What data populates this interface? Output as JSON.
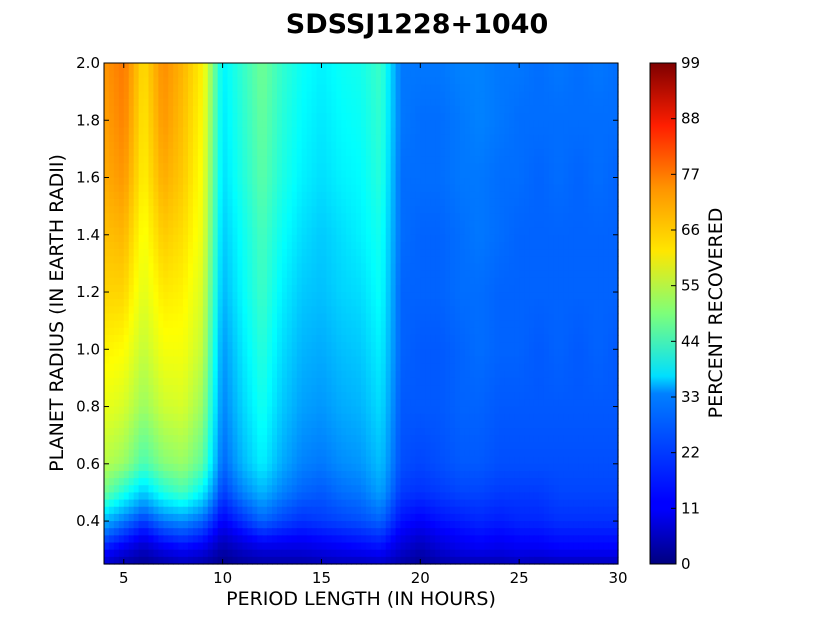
{
  "chart_data": {
    "type": "heatmap",
    "title": "SDSSJ1228+1040",
    "xlabel": "PERIOD LENGTH (IN HOURS)",
    "ylabel": "PLANET RADIUS (IN EARTH RADII)",
    "colorbar_label": "PERCENT RECOVERED",
    "colormap": "jet",
    "xlim": [
      4,
      30
    ],
    "ylim": [
      0.25,
      2.0
    ],
    "clim": [
      0,
      99
    ],
    "x_ticks": [
      5,
      10,
      15,
      20,
      25,
      30
    ],
    "x_tick_labels": [
      "5",
      "10",
      "15",
      "20",
      "25",
      "30"
    ],
    "y_ticks": [
      0.4,
      0.6,
      0.8,
      1.0,
      1.2,
      1.4,
      1.6,
      1.8,
      2.0
    ],
    "y_tick_labels": [
      "0.4",
      "0.6",
      "0.8",
      "1.0",
      "1.2",
      "1.4",
      "1.6",
      "1.8",
      "2.0"
    ],
    "colorbar_ticks": [
      0,
      11,
      22,
      33,
      44,
      55,
      66,
      77,
      88,
      99
    ],
    "colorbar_tick_labels": [
      "0",
      "11",
      "22",
      "33",
      "44",
      "55",
      "66",
      "77",
      "88",
      "99"
    ],
    "x": [
      4,
      5,
      6,
      7,
      8,
      9,
      10,
      11,
      12,
      13,
      14,
      15,
      16,
      17,
      18,
      19,
      20,
      21,
      22,
      23,
      24,
      25,
      26,
      27,
      28,
      29,
      30
    ],
    "y": [
      0.25,
      0.3,
      0.4,
      0.5,
      0.6,
      0.8,
      1.0,
      1.2,
      1.4,
      1.6,
      1.8,
      2.0
    ],
    "z": [
      [
        8,
        4,
        2,
        4,
        6,
        4,
        1,
        3,
        4,
        4,
        4,
        5,
        6,
        6,
        7,
        4,
        2,
        4,
        5,
        5,
        5,
        6,
        5,
        6,
        6,
        6,
        6
      ],
      [
        14,
        10,
        6,
        10,
        12,
        10,
        4,
        7,
        9,
        9,
        9,
        10,
        11,
        12,
        13,
        8,
        5,
        8,
        10,
        11,
        10,
        11,
        11,
        12,
        12,
        12,
        12
      ],
      [
        30,
        24,
        18,
        24,
        26,
        22,
        12,
        17,
        22,
        19,
        17,
        18,
        19,
        20,
        22,
        14,
        12,
        14,
        15,
        16,
        15,
        16,
        16,
        17,
        17,
        17,
        17
      ],
      [
        48,
        40,
        32,
        40,
        44,
        36,
        18,
        25,
        30,
        25,
        22,
        21,
        23,
        24,
        28,
        18,
        17,
        18,
        19,
        19,
        18,
        18,
        18,
        19,
        19,
        19,
        19
      ],
      [
        55,
        52,
        44,
        50,
        52,
        46,
        22,
        30,
        36,
        29,
        25,
        24,
        26,
        27,
        31,
        20,
        19,
        20,
        21,
        21,
        20,
        20,
        20,
        20,
        20,
        20,
        20
      ],
      [
        60,
        58,
        52,
        57,
        58,
        52,
        25,
        33,
        39,
        32,
        28,
        27,
        29,
        30,
        34,
        21,
        21,
        21,
        22,
        22,
        21,
        21,
        21,
        21,
        21,
        21,
        21
      ],
      [
        63,
        62,
        56,
        61,
        61,
        56,
        27,
        35,
        41,
        34,
        30,
        29,
        31,
        32,
        36,
        22,
        21,
        21,
        22,
        23,
        22,
        22,
        21,
        22,
        21,
        22,
        21
      ],
      [
        66,
        66,
        59,
        64,
        63,
        58,
        30,
        37,
        43,
        36,
        32,
        31,
        33,
        34,
        38,
        22,
        22,
        22,
        23,
        23,
        22,
        22,
        22,
        22,
        22,
        22,
        22
      ],
      [
        68,
        69,
        61,
        67,
        65,
        60,
        32,
        38,
        44,
        38,
        34,
        32,
        34,
        36,
        39,
        23,
        22,
        22,
        23,
        24,
        23,
        22,
        22,
        22,
        22,
        22,
        22
      ],
      [
        70,
        72,
        63,
        70,
        67,
        61,
        34,
        40,
        46,
        40,
        36,
        34,
        36,
        37,
        41,
        23,
        23,
        23,
        24,
        24,
        23,
        23,
        22,
        23,
        22,
        23,
        22
      ],
      [
        71,
        74,
        64,
        72,
        68,
        62,
        35,
        41,
        47,
        41,
        37,
        35,
        37,
        38,
        42,
        24,
        23,
        23,
        24,
        25,
        24,
        23,
        23,
        23,
        23,
        23,
        23
      ],
      [
        72,
        75,
        65,
        73,
        69,
        63,
        36,
        42,
        48,
        42,
        38,
        36,
        38,
        39,
        43,
        24,
        24,
        24,
        25,
        25,
        24,
        24,
        23,
        24,
        23,
        24,
        23
      ]
    ]
  }
}
